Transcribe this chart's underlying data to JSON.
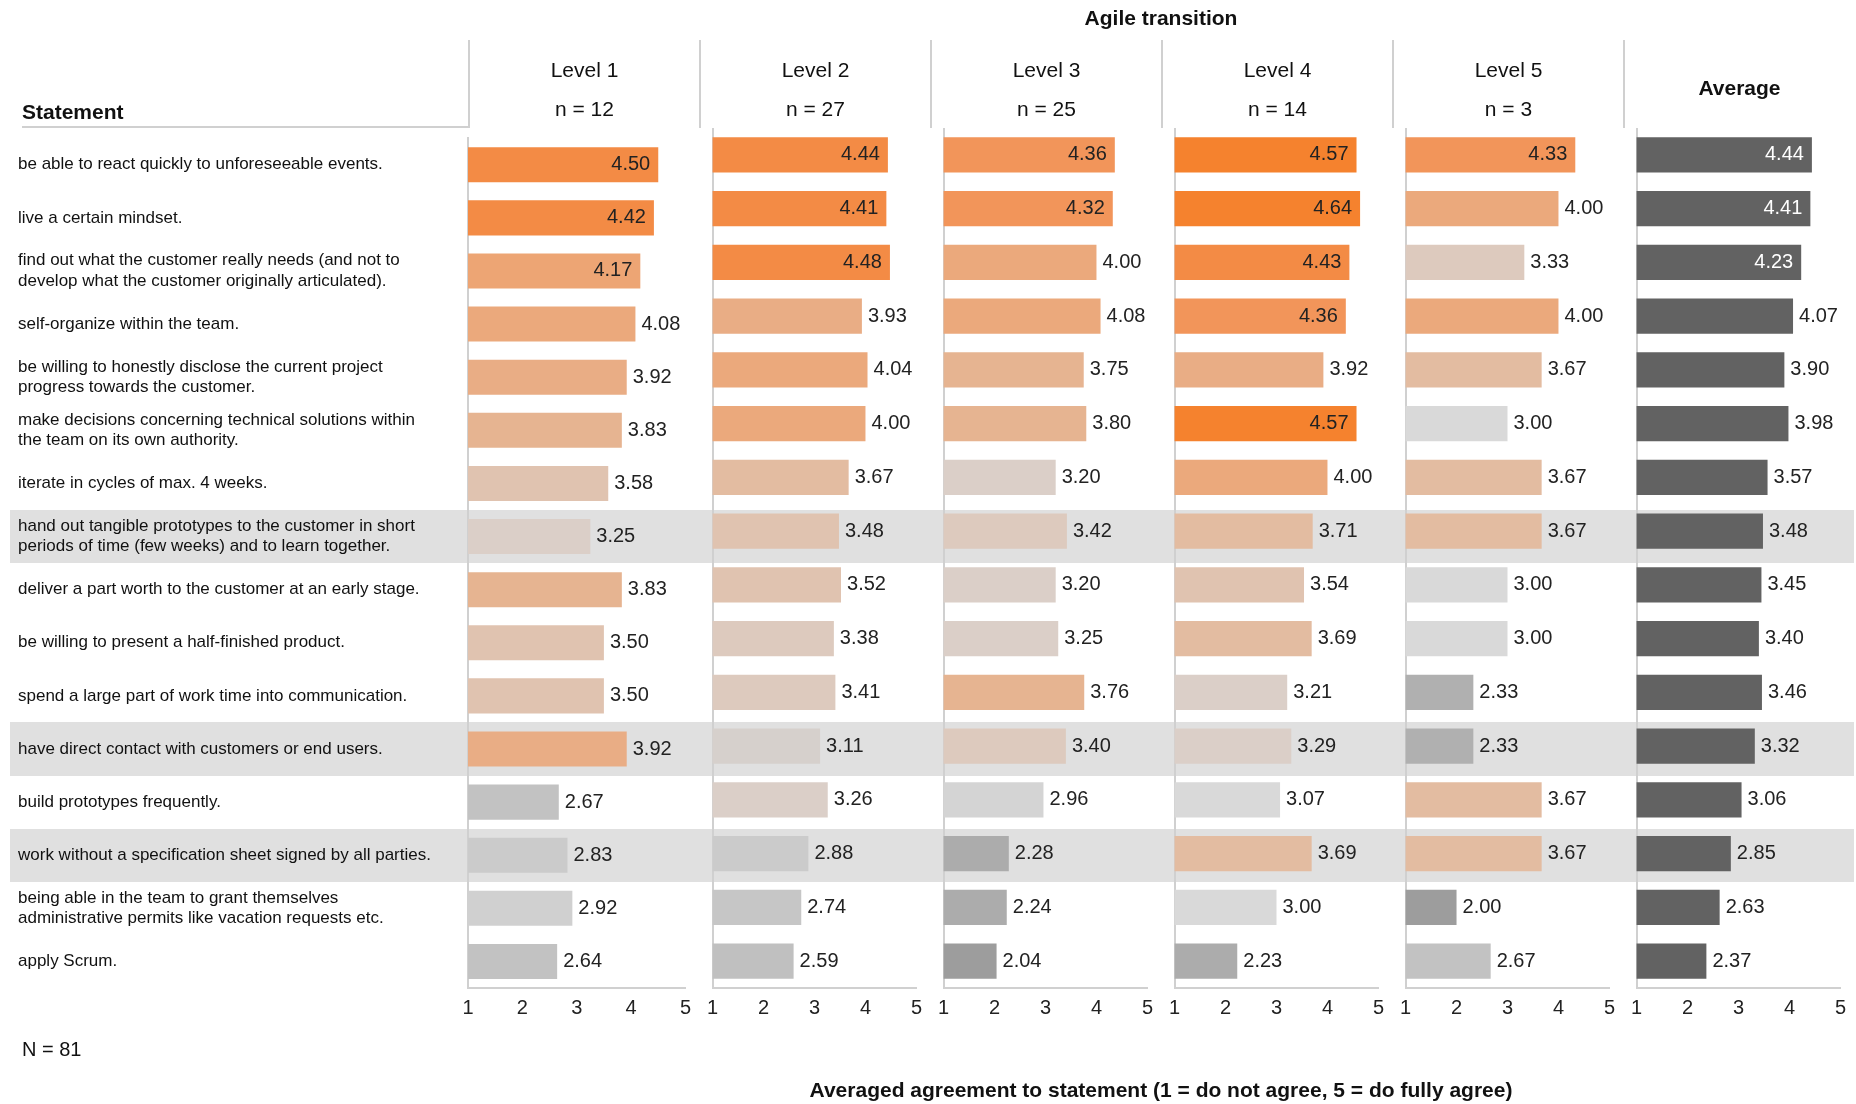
{
  "chart_data": [
    {
      "type": "bar",
      "orientation": "horizontal",
      "title": "Level 1",
      "subtitle": "n = 12",
      "ylabel": "Statement",
      "xlabel": "Averaged agreement to statement (1 = do not agree, 5  = do fully agree)",
      "annotations": [
        "Agile transition",
        "N = 81"
      ],
      "categories": [
        "be able to react quickly to unforeseeable events.",
        "live a certain mindset.",
        "find out what the customer really needs (and not to develop what the customer originally articulated).",
        "self-organize within the team.",
        "be willing to honestly disclose the current project progress towards the customer.",
        "make decisions concerning technical solutions within the team on its own authority.",
        "iterate in cycles of max. 4 weeks.",
        "hand out tangible prototypes to the customer in short periods of time (few weeks) and to learn together.",
        "deliver a part worth to the customer at an early stage.",
        "be willing to present a half-finished product.",
        "spend a large part of work time into communication.",
        "have direct contact with customers or end users.",
        "build prototypes frequently.",
        "work without a specification sheet signed by all parties.",
        "being able in the team to grant themselves administrative permits like vacation requests etc.",
        "apply Scrum."
      ],
      "values": [
        4.5,
        4.42,
        4.17,
        4.08,
        3.92,
        3.83,
        3.58,
        3.25,
        3.83,
        3.5,
        3.5,
        3.92,
        2.67,
        2.83,
        2.92,
        2.64
      ],
      "value_labels": [
        "4.50",
        "4.42",
        "4.17",
        "4.08",
        "3.92",
        "3.83",
        "3.58",
        "3.25",
        "3.83",
        "3.50",
        "3.50",
        "3.92",
        "2.67",
        "2.83",
        "2.92",
        "2.64"
      ],
      "colors": [
        "#f38b45",
        "#f38b45",
        "#eda574",
        "#eba97c",
        "#e9ad85",
        "#e6b491",
        "#e0c3b0",
        "#dbcfc8",
        "#e6b491",
        "#e0c3b0",
        "#e0c3b0",
        "#e9ad85",
        "#c2c2c2",
        "#cbcbcb",
        "#d0d0d0",
        "#c2c2c2"
      ],
      "xlim": [
        1,
        5
      ],
      "xticks": [
        1,
        2,
        3,
        4,
        5
      ]
    },
    {
      "type": "bar",
      "orientation": "horizontal",
      "title": "Level 2",
      "subtitle": "n = 27",
      "tick_labels": "x",
      "categories": [
        null,
        null,
        null,
        null,
        null,
        null,
        null,
        null,
        null,
        null,
        null,
        null,
        null,
        null,
        null,
        null
      ],
      "values": [
        4.44,
        4.41,
        4.48,
        3.93,
        4.04,
        4.0,
        3.67,
        3.48,
        3.52,
        3.38,
        3.41,
        3.11,
        3.26,
        2.88,
        2.74,
        2.59
      ],
      "value_labels": [
        "4.44",
        "4.41",
        "4.48",
        "3.93",
        "4.04",
        "4.00",
        "3.67",
        "3.48",
        "3.52",
        "3.38",
        "3.41",
        "3.11",
        "3.26",
        "2.88",
        "2.74",
        "2.59"
      ],
      "colors": [
        "#f38b45",
        "#f38b45",
        "#f38b45",
        "#e9ad85",
        "#eba97c",
        "#eba97c",
        "#e3bca1",
        "#e0c3b0",
        "#e0c3b0",
        "#ddcabe",
        "#ddcabe",
        "#d6d0cc",
        "#dbcfc8",
        "#cbcbcb",
        "#c6c6c6",
        "#c0c0c0"
      ],
      "xlim": [
        1,
        5
      ],
      "xticks": [
        1,
        2,
        3,
        4,
        5
      ]
    },
    {
      "type": "bar",
      "orientation": "horizontal",
      "title": "Level 3",
      "subtitle": "n = 25",
      "tick_labels": "x",
      "categories": [
        null,
        null,
        null,
        null,
        null,
        null,
        null,
        null,
        null,
        null,
        null,
        null,
        null,
        null,
        null,
        null
      ],
      "values": [
        4.36,
        4.32,
        4.0,
        4.08,
        3.75,
        3.8,
        3.2,
        3.42,
        3.2,
        3.25,
        3.76,
        3.4,
        2.96,
        2.28,
        2.24,
        2.04
      ],
      "value_labels": [
        "4.36",
        "4.32",
        "4.00",
        "4.08",
        "3.75",
        "3.80",
        "3.20",
        "3.42",
        "3.20",
        "3.25",
        "3.76",
        "3.40",
        "2.96",
        "2.28",
        "2.24",
        "2.04"
      ],
      "colors": [
        "#f2955a",
        "#f2955a",
        "#eba97c",
        "#eba97c",
        "#e6b491",
        "#e6b491",
        "#dbcfc8",
        "#ddcabe",
        "#dbcfc8",
        "#dbcfc8",
        "#e6b491",
        "#ddcabe",
        "#d4d4d4",
        "#acacac",
        "#acacac",
        "#9d9d9d"
      ],
      "xlim": [
        1,
        5
      ],
      "xticks": [
        1,
        2,
        3,
        4,
        5
      ]
    },
    {
      "type": "bar",
      "orientation": "horizontal",
      "title": "Level 4",
      "subtitle": "n = 14",
      "tick_labels": "x",
      "categories": [
        null,
        null,
        null,
        null,
        null,
        null,
        null,
        null,
        null,
        null,
        null,
        null,
        null,
        null,
        null,
        null
      ],
      "values": [
        4.57,
        4.64,
        4.43,
        4.36,
        3.92,
        4.57,
        4.0,
        3.71,
        3.54,
        3.69,
        3.21,
        3.29,
        3.07,
        3.69,
        3.0,
        2.23
      ],
      "value_labels": [
        "4.57",
        "4.64",
        "4.43",
        "4.36",
        "3.92",
        "4.57",
        "4.00",
        "3.71",
        "3.54",
        "3.69",
        "3.21",
        "3.29",
        "3.07",
        "3.69",
        "3.00",
        "2.23"
      ],
      "colors": [
        "#f5822e",
        "#f5822e",
        "#f38b45",
        "#f2955a",
        "#e9ad85",
        "#f5822e",
        "#eba97c",
        "#e3bca1",
        "#e0c3b0",
        "#e3bca1",
        "#dbcfc8",
        "#dbcfc8",
        "#d9d9d9",
        "#e3bca1",
        "#d9d9d9",
        "#acacac"
      ],
      "xlim": [
        1,
        5
      ],
      "xticks": [
        1,
        2,
        3,
        4,
        5
      ]
    },
    {
      "type": "bar",
      "orientation": "horizontal",
      "title": "Level 5",
      "subtitle": "n = 3",
      "tick_labels": "x",
      "categories": [
        null,
        null,
        null,
        null,
        null,
        null,
        null,
        null,
        null,
        null,
        null,
        null,
        null,
        null,
        null,
        null
      ],
      "values": [
        4.33,
        4.0,
        3.33,
        4.0,
        3.67,
        3.0,
        3.67,
        3.67,
        3.0,
        3.0,
        2.33,
        2.33,
        3.67,
        3.67,
        2.0,
        2.67
      ],
      "value_labels": [
        "4.33",
        "4.00",
        "3.33",
        "4.00",
        "3.67",
        "3.00",
        "3.67",
        "3.67",
        "3.00",
        "3.00",
        "2.33",
        "2.33",
        "3.67",
        "3.67",
        "2.00",
        "2.67"
      ],
      "colors": [
        "#f2955a",
        "#eba97c",
        "#ddcabe",
        "#eba97c",
        "#e3bca1",
        "#d9d9d9",
        "#e3bca1",
        "#e3bca1",
        "#d9d9d9",
        "#d9d9d9",
        "#b0b0b0",
        "#b0b0b0",
        "#e3bca1",
        "#e3bca1",
        "#9d9d9d",
        "#c2c2c2"
      ],
      "xlim": [
        1,
        5
      ],
      "xticks": [
        1,
        2,
        3,
        4,
        5
      ]
    },
    {
      "type": "bar",
      "orientation": "horizontal",
      "title": "Average",
      "tick_labels": "x",
      "categories": [
        null,
        null,
        null,
        null,
        null,
        null,
        null,
        null,
        null,
        null,
        null,
        null,
        null,
        null,
        null,
        null
      ],
      "values": [
        4.44,
        4.41,
        4.23,
        4.07,
        3.9,
        3.98,
        3.57,
        3.48,
        3.45,
        3.4,
        3.46,
        3.32,
        3.06,
        2.85,
        2.63,
        2.37
      ],
      "value_labels": [
        "4.44",
        "4.41",
        "4.23",
        "4.07",
        "3.90",
        "3.98",
        "3.57",
        "3.48",
        "3.45",
        "3.40",
        "3.46",
        "3.32",
        "3.06",
        "2.85",
        "2.63",
        "2.37"
      ],
      "color": "#626262",
      "xlim": [
        1,
        5
      ],
      "xticks": [
        1,
        2,
        3,
        4,
        5
      ]
    }
  ]
}
